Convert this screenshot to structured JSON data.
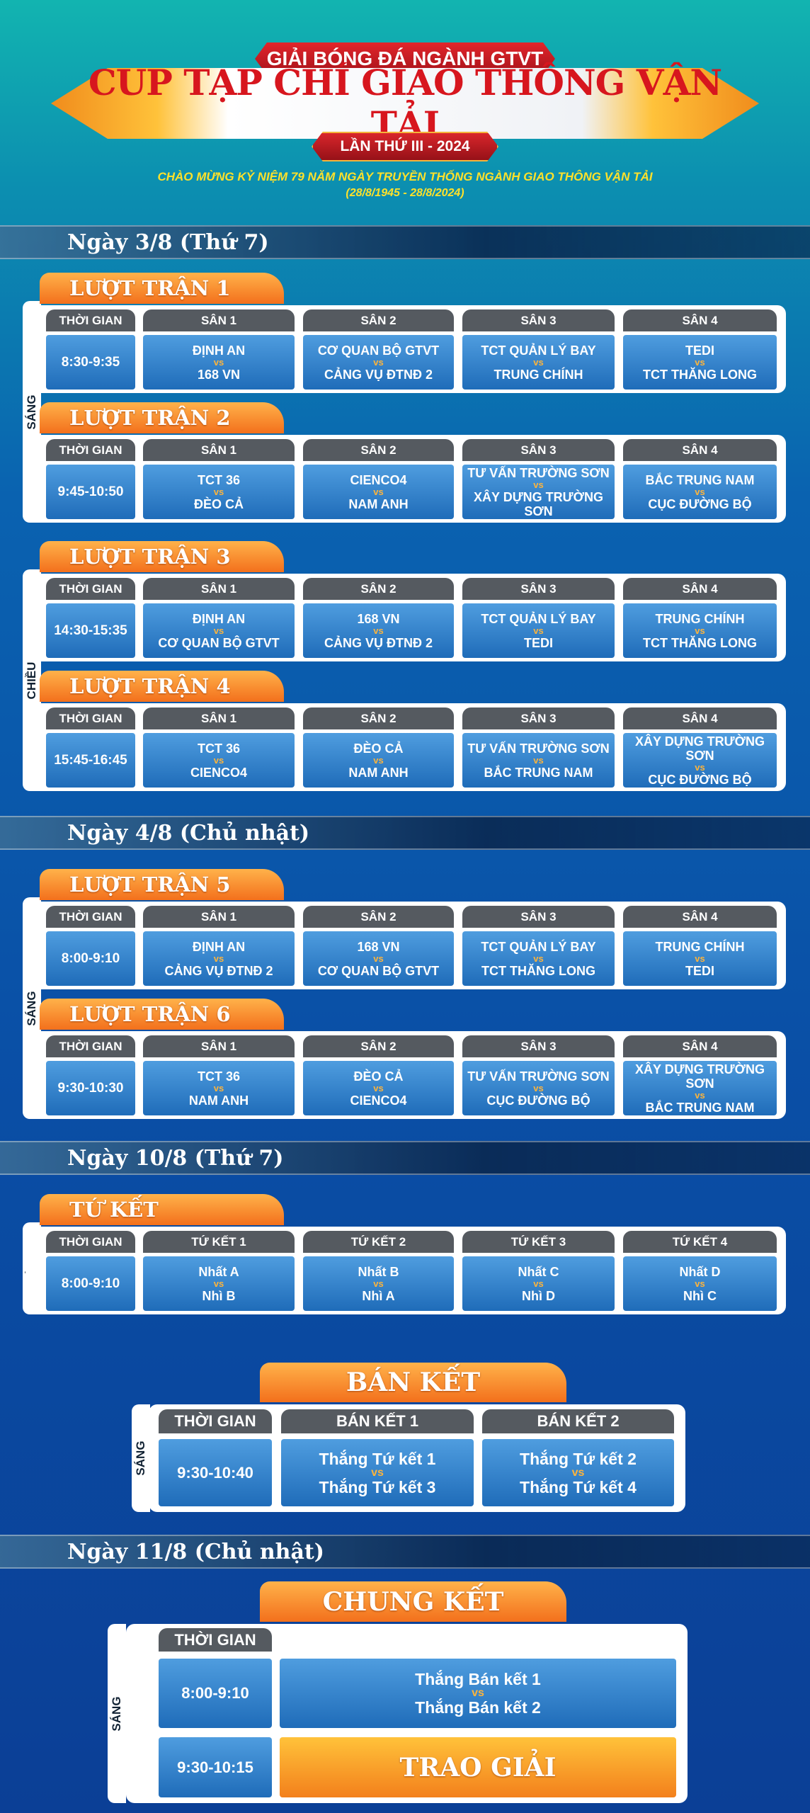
{
  "header": {
    "badge": "GIẢI BÓNG ĐÁ NGÀNH GTVT",
    "title": "CUP TẠP CHÍ GIAO THÔNG VẬN TẢI",
    "edition": "LẦN THỨ III - 2024",
    "tagline": "CHÀO MỪNG  KỶ NIỆM 79 NĂM NGÀY TRUYỀN THỐNG NGÀNH GIAO THÔNG VẬN TẢI",
    "dates": "(28/8/1945 - 28/8/2024)"
  },
  "versus": "vs",
  "days": [
    {
      "label": "Ngày 3/8 (Thứ 7)",
      "sessions": [
        {
          "label": "SÁNG",
          "rounds": [
            {
              "title": "LƯỢT TRẬN 1",
              "columns": [
                "THỜI GIAN",
                "SÂN 1",
                "SÂN 2",
                "SÂN 3",
                "SÂN 4"
              ],
              "time": "8:30-9:35",
              "matches": [
                {
                  "home": "ĐỊNH AN",
                  "away": "168 VN"
                },
                {
                  "home": "CƠ QUAN BỘ GTVT",
                  "away": "CẢNG VỤ ĐTNĐ 2"
                },
                {
                  "home": "TCT QUẢN LÝ BAY",
                  "away": "TRUNG CHÍNH"
                },
                {
                  "home": "TEDI",
                  "away": "TCT THĂNG LONG"
                }
              ]
            },
            {
              "title": "LƯỢT TRẬN 2",
              "columns": [
                "THỜI GIAN",
                "SÂN 1",
                "SÂN 2",
                "SÂN 3",
                "SÂN 4"
              ],
              "time": "9:45-10:50",
              "matches": [
                {
                  "home": "TCT 36",
                  "away": "ĐÈO CẢ"
                },
                {
                  "home": "CIENCO4",
                  "away": "NAM ANH"
                },
                {
                  "home": "TƯ VẤN TRƯỜNG SƠN",
                  "away": "XÂY DỰNG TRƯỜNG SƠN"
                },
                {
                  "home": "BẮC TRUNG NAM",
                  "away": "CỤC ĐƯỜNG BỘ"
                }
              ]
            }
          ]
        },
        {
          "label": "CHIỀU",
          "rounds": [
            {
              "title": "LƯỢT TRẬN 3",
              "columns": [
                "THỜI GIAN",
                "SÂN 1",
                "SÂN 2",
                "SÂN 3",
                "SÂN 4"
              ],
              "time": "14:30-15:35",
              "matches": [
                {
                  "home": "ĐỊNH AN",
                  "away": "CƠ QUAN BỘ GTVT"
                },
                {
                  "home": "168 VN",
                  "away": "CẢNG VỤ ĐTNĐ 2"
                },
                {
                  "home": "TCT QUẢN LÝ BAY",
                  "away": "TEDI"
                },
                {
                  "home": "TRUNG CHÍNH",
                  "away": "TCT THĂNG LONG"
                }
              ]
            },
            {
              "title": "LƯỢT TRẬN 4",
              "columns": [
                "THỜI GIAN",
                "SÂN 1",
                "SÂN 2",
                "SÂN 3",
                "SÂN 4"
              ],
              "time": "15:45-16:45",
              "matches": [
                {
                  "home": "TCT 36",
                  "away": "CIENCO4"
                },
                {
                  "home": "ĐÈO CẢ",
                  "away": "NAM ANH"
                },
                {
                  "home": "TƯ VẤN TRƯỜNG SƠN",
                  "away": "BẮC TRUNG NAM"
                },
                {
                  "home": "XÂY DỰNG TRƯỜNG SƠN",
                  "away": "CỤC ĐƯỜNG BỘ"
                }
              ]
            }
          ]
        }
      ]
    },
    {
      "label": "Ngày 4/8 (Chủ nhật)",
      "sessions": [
        {
          "label": "SÁNG",
          "rounds": [
            {
              "title": "LƯỢT TRẬN 5",
              "columns": [
                "THỜI GIAN",
                "SÂN 1",
                "SÂN 2",
                "SÂN 3",
                "SÂN 4"
              ],
              "time": "8:00-9:10",
              "matches": [
                {
                  "home": "ĐỊNH AN",
                  "away": "CẢNG VỤ ĐTNĐ 2"
                },
                {
                  "home": "168 VN",
                  "away": "CƠ QUAN BỘ GTVT"
                },
                {
                  "home": "TCT QUẢN LÝ BAY",
                  "away": "TCT THĂNG LONG"
                },
                {
                  "home": "TRUNG CHÍNH",
                  "away": "TEDI"
                }
              ]
            },
            {
              "title": "LƯỢT TRẬN 6",
              "columns": [
                "THỜI GIAN",
                "SÂN 1",
                "SÂN 2",
                "SÂN 3",
                "SÂN 4"
              ],
              "time": "9:30-10:30",
              "matches": [
                {
                  "home": "TCT 36",
                  "away": "NAM ANH"
                },
                {
                  "home": "ĐÈO CẢ",
                  "away": "CIENCO4"
                },
                {
                  "home": "TƯ VẤN TRƯỜNG SƠN",
                  "away": "CỤC ĐƯỜNG BỘ"
                },
                {
                  "home": "XÂY DỰNG TRƯỜNG SƠN",
                  "away": "BẮC TRUNG NAM"
                }
              ]
            }
          ]
        }
      ]
    },
    {
      "label": "Ngày 10/8 (Thứ 7)",
      "sessions": [
        {
          "label": "SÁNG",
          "rounds": [
            {
              "title": "TỨ KẾT",
              "columns": [
                "THỜI GIAN",
                "TỨ KẾT 1",
                "TỨ KẾT 2",
                "TỨ KẾT 3",
                "TỨ KẾT 4"
              ],
              "time": "8:00-9:10",
              "matches": [
                {
                  "home": "Nhất A",
                  "away": "Nhì B"
                },
                {
                  "home": "Nhất B",
                  "away": "Nhì A"
                },
                {
                  "home": "Nhất C",
                  "away": "Nhì D"
                },
                {
                  "home": "Nhất D",
                  "away": "Nhì C"
                }
              ]
            }
          ]
        },
        {
          "label": "SÁNG",
          "rounds": [
            {
              "title": "BÁN KẾT",
              "columns": [
                "THỜI GIAN",
                "BÁN KẾT 1",
                "BÁN KẾT 2"
              ],
              "time": "9:30-10:40",
              "matches": [
                {
                  "home": "Thắng Tứ kết 1",
                  "away": "Thắng Tứ kết 3"
                },
                {
                  "home": "Thắng Tứ kết 2",
                  "away": "Thắng Tứ kết 4"
                }
              ]
            }
          ]
        }
      ]
    },
    {
      "label": "Ngày 11/8 (Chủ nhật)",
      "sessions": [
        {
          "label": "SÁNG",
          "final": {
            "title": "CHUNG KẾT",
            "column": "THỜI GIAN",
            "match_time": "8:00-9:10",
            "match": {
              "home": "Thắng Bán kết 1",
              "away": "Thắng Bán kết 2"
            },
            "ceremony_time": "9:30-10:15",
            "ceremony": "TRAO GIẢI"
          }
        }
      ]
    }
  ]
}
